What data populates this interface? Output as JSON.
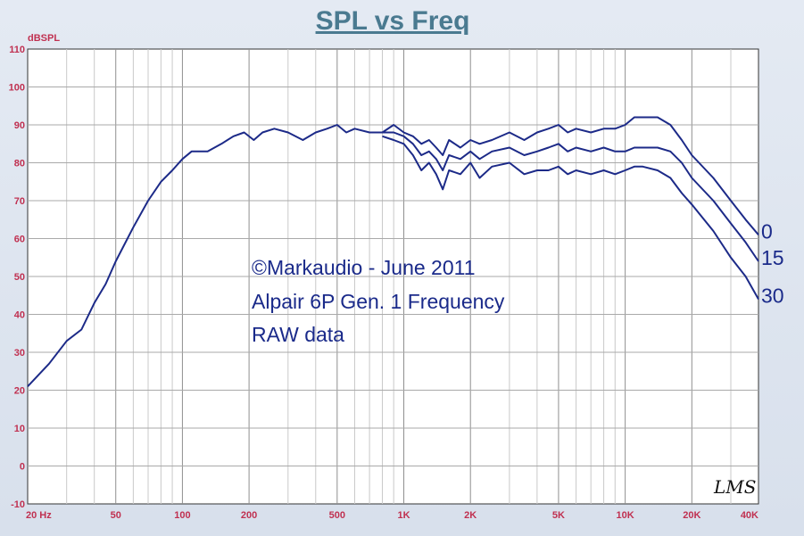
{
  "chart_data": {
    "type": "line",
    "title": "SPL vs Freq",
    "ylabel": "dBSPL",
    "x_scale": "log",
    "xlim": [
      20,
      40000
    ],
    "ylim": [
      -10,
      110
    ],
    "y_ticks": [
      "110",
      "100",
      "90",
      "80",
      "70",
      "60",
      "50",
      "40",
      "30",
      "20",
      "10",
      "0",
      "-10"
    ],
    "x_ticks": [
      {
        "freq": 20,
        "label": "20 Hz"
      },
      {
        "freq": 50,
        "label": "50"
      },
      {
        "freq": 100,
        "label": "100"
      },
      {
        "freq": 200,
        "label": "200"
      },
      {
        "freq": 500,
        "label": "500"
      },
      {
        "freq": 1000,
        "label": "1K"
      },
      {
        "freq": 2000,
        "label": "2K"
      },
      {
        "freq": 5000,
        "label": "5K"
      },
      {
        "freq": 10000,
        "label": "10K"
      },
      {
        "freq": 20000,
        "label": "20K"
      },
      {
        "freq": 40000,
        "label": "40K"
      }
    ],
    "grid": true,
    "annotations": [
      "©Markaudio - June 2011",
      "Alpair 6P Gen. 1 Frequency",
      "RAW data"
    ],
    "logo_text": "LMS",
    "line_color": "#1c2a88",
    "series": [
      {
        "name": "0",
        "points": [
          [
            20,
            21
          ],
          [
            25,
            27
          ],
          [
            30,
            33
          ],
          [
            35,
            36
          ],
          [
            40,
            43
          ],
          [
            45,
            48
          ],
          [
            50,
            54
          ],
          [
            60,
            63
          ],
          [
            70,
            70
          ],
          [
            80,
            75
          ],
          [
            90,
            78
          ],
          [
            100,
            81
          ],
          [
            110,
            83
          ],
          [
            120,
            83
          ],
          [
            130,
            83
          ],
          [
            150,
            85
          ],
          [
            170,
            87
          ],
          [
            190,
            88
          ],
          [
            210,
            86
          ],
          [
            230,
            88
          ],
          [
            260,
            89
          ],
          [
            300,
            88
          ],
          [
            350,
            86
          ],
          [
            400,
            88
          ],
          [
            450,
            89
          ],
          [
            500,
            90
          ],
          [
            550,
            88
          ],
          [
            600,
            89
          ],
          [
            700,
            88
          ],
          [
            800,
            88
          ],
          [
            900,
            90
          ],
          [
            1000,
            88
          ],
          [
            1100,
            87
          ],
          [
            1200,
            85
          ],
          [
            1300,
            86
          ],
          [
            1400,
            84
          ],
          [
            1500,
            82
          ],
          [
            1600,
            86
          ],
          [
            1800,
            84
          ],
          [
            2000,
            86
          ],
          [
            2200,
            85
          ],
          [
            2500,
            86
          ],
          [
            3000,
            88
          ],
          [
            3500,
            86
          ],
          [
            4000,
            88
          ],
          [
            4500,
            89
          ],
          [
            5000,
            90
          ],
          [
            5500,
            88
          ],
          [
            6000,
            89
          ],
          [
            7000,
            88
          ],
          [
            8000,
            89
          ],
          [
            9000,
            89
          ],
          [
            10000,
            90
          ],
          [
            11000,
            92
          ],
          [
            12000,
            92
          ],
          [
            14000,
            92
          ],
          [
            16000,
            90
          ],
          [
            18000,
            86
          ],
          [
            20000,
            82
          ],
          [
            25000,
            76
          ],
          [
            30000,
            70
          ],
          [
            35000,
            65
          ],
          [
            40000,
            61
          ]
        ]
      },
      {
        "name": "15",
        "points": [
          [
            800,
            88
          ],
          [
            900,
            88
          ],
          [
            1000,
            87
          ],
          [
            1100,
            85
          ],
          [
            1200,
            82
          ],
          [
            1300,
            83
          ],
          [
            1400,
            81
          ],
          [
            1500,
            78
          ],
          [
            1600,
            82
          ],
          [
            1800,
            81
          ],
          [
            2000,
            83
          ],
          [
            2200,
            81
          ],
          [
            2500,
            83
          ],
          [
            3000,
            84
          ],
          [
            3500,
            82
          ],
          [
            4000,
            83
          ],
          [
            4500,
            84
          ],
          [
            5000,
            85
          ],
          [
            5500,
            83
          ],
          [
            6000,
            84
          ],
          [
            7000,
            83
          ],
          [
            8000,
            84
          ],
          [
            9000,
            83
          ],
          [
            10000,
            83
          ],
          [
            11000,
            84
          ],
          [
            12000,
            84
          ],
          [
            14000,
            84
          ],
          [
            16000,
            83
          ],
          [
            18000,
            80
          ],
          [
            20000,
            76
          ],
          [
            25000,
            70
          ],
          [
            30000,
            64
          ],
          [
            35000,
            59
          ],
          [
            40000,
            54
          ]
        ]
      },
      {
        "name": "30",
        "points": [
          [
            800,
            87
          ],
          [
            900,
            86
          ],
          [
            1000,
            85
          ],
          [
            1100,
            82
          ],
          [
            1200,
            78
          ],
          [
            1300,
            80
          ],
          [
            1400,
            77
          ],
          [
            1500,
            73
          ],
          [
            1600,
            78
          ],
          [
            1800,
            77
          ],
          [
            2000,
            80
          ],
          [
            2200,
            76
          ],
          [
            2500,
            79
          ],
          [
            3000,
            80
          ],
          [
            3500,
            77
          ],
          [
            4000,
            78
          ],
          [
            4500,
            78
          ],
          [
            5000,
            79
          ],
          [
            5500,
            77
          ],
          [
            6000,
            78
          ],
          [
            7000,
            77
          ],
          [
            8000,
            78
          ],
          [
            9000,
            77
          ],
          [
            10000,
            78
          ],
          [
            11000,
            79
          ],
          [
            12000,
            79
          ],
          [
            14000,
            78
          ],
          [
            16000,
            76
          ],
          [
            18000,
            72
          ],
          [
            20000,
            69
          ],
          [
            25000,
            62
          ],
          [
            30000,
            55
          ],
          [
            35000,
            50
          ],
          [
            40000,
            44
          ]
        ]
      }
    ]
  }
}
